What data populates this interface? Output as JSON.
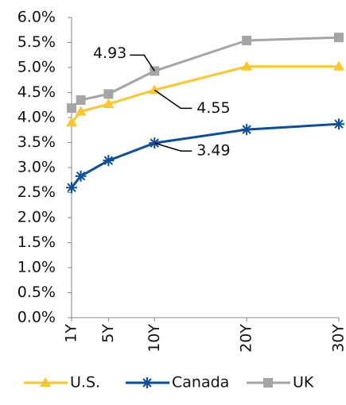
{
  "chart_data": {
    "type": "line",
    "x": [
      1,
      2,
      5,
      10,
      20,
      30
    ],
    "series": [
      {
        "name": "U.S.",
        "color": "#ffc62b",
        "marker": "triangle",
        "values": [
          3.9,
          4.12,
          4.27,
          4.55,
          5.02,
          5.02
        ],
        "value_labels": [
          null,
          null,
          null,
          "4.55",
          null,
          null
        ]
      },
      {
        "name": "Canada",
        "color": "#0b4f9c",
        "marker": "asterisk",
        "values": [
          2.6,
          2.83,
          3.14,
          3.49,
          3.76,
          3.87
        ],
        "value_labels": [
          null,
          null,
          null,
          "3.49",
          null,
          null
        ]
      },
      {
        "name": "UK",
        "color": "#a5a5a5",
        "marker": "square",
        "values": [
          4.19,
          4.35,
          4.47,
          4.93,
          5.54,
          5.6
        ],
        "value_labels": [
          null,
          null,
          null,
          "4.93",
          null,
          null
        ]
      }
    ],
    "xlim": [
      1,
      30
    ],
    "xticks": [
      {
        "value": 1,
        "label": "1Y"
      },
      {
        "value": 5,
        "label": "5Y"
      },
      {
        "value": 10,
        "label": "10Y"
      },
      {
        "value": 20,
        "label": "20Y"
      },
      {
        "value": 30,
        "label": "30Y"
      }
    ],
    "ylim": [
      0,
      6
    ],
    "yticks": [
      {
        "value": 0,
        "label": "0.0%"
      },
      {
        "value": 0.5,
        "label": "0.5%"
      },
      {
        "value": 1,
        "label": "1.0%"
      },
      {
        "value": 1.5,
        "label": "1.5%"
      },
      {
        "value": 2,
        "label": "2.0%"
      },
      {
        "value": 2.5,
        "label": "2.5%"
      },
      {
        "value": 3,
        "label": "3.0%"
      },
      {
        "value": 3.5,
        "label": "3.5%"
      },
      {
        "value": 4,
        "label": "4.0%"
      },
      {
        "value": 4.5,
        "label": "4.5%"
      },
      {
        "value": 5,
        "label": "5.0%"
      },
      {
        "value": 5.5,
        "label": "5.5%"
      },
      {
        "value": 6,
        "label": "6.0%"
      }
    ],
    "grid": false,
    "legend": "bottom"
  }
}
